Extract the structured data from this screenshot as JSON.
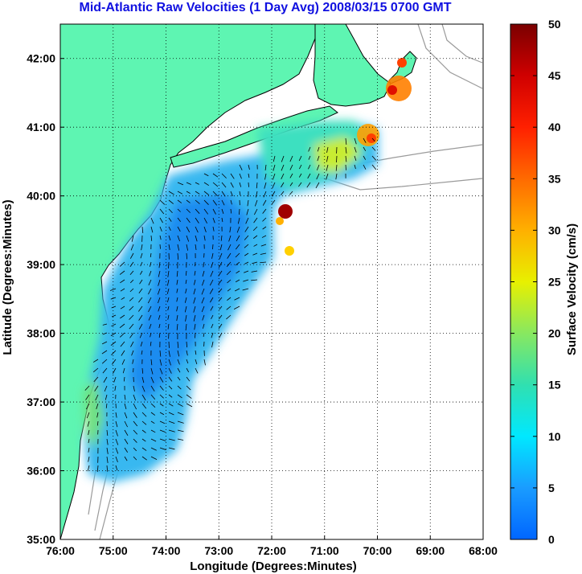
{
  "title": "Mid-Atlantic Raw Velocities (1 Day Avg) 2008/03/15 0700 GMT",
  "map": {
    "x_axis": {
      "label": "Longitude (Degrees:Minutes)",
      "ticks": [
        "76:00",
        "75:00",
        "74:00",
        "73:00",
        "72:00",
        "71:00",
        "70:00",
        "69:00",
        "68:00"
      ]
    },
    "y_axis": {
      "label": "Latitude (Degrees:Minutes)",
      "ticks": [
        "35:00",
        "36:00",
        "37:00",
        "38:00",
        "39:00",
        "40:00",
        "41:00",
        "42:00"
      ]
    },
    "extent": {
      "lon_min": -76,
      "lon_max": -68,
      "lat_min": 35,
      "lat_max": 42.5
    },
    "gridlines": "dotted",
    "land_color": "#5ef5b2",
    "bathymetry_color": "#9a9a9a",
    "vector_color": "#000000"
  },
  "colorbar": {
    "label": "Surface Velocity (cm/s)",
    "ticks": [
      "0",
      "5",
      "10",
      "15",
      "20",
      "25",
      "30",
      "35",
      "40",
      "45",
      "50"
    ],
    "range": [
      0,
      50
    ],
    "placement": "right"
  },
  "colors": {
    "title": "#1010e0",
    "low": "#0066ff",
    "mid": "#30e0c0",
    "high": "#8b0000"
  }
}
